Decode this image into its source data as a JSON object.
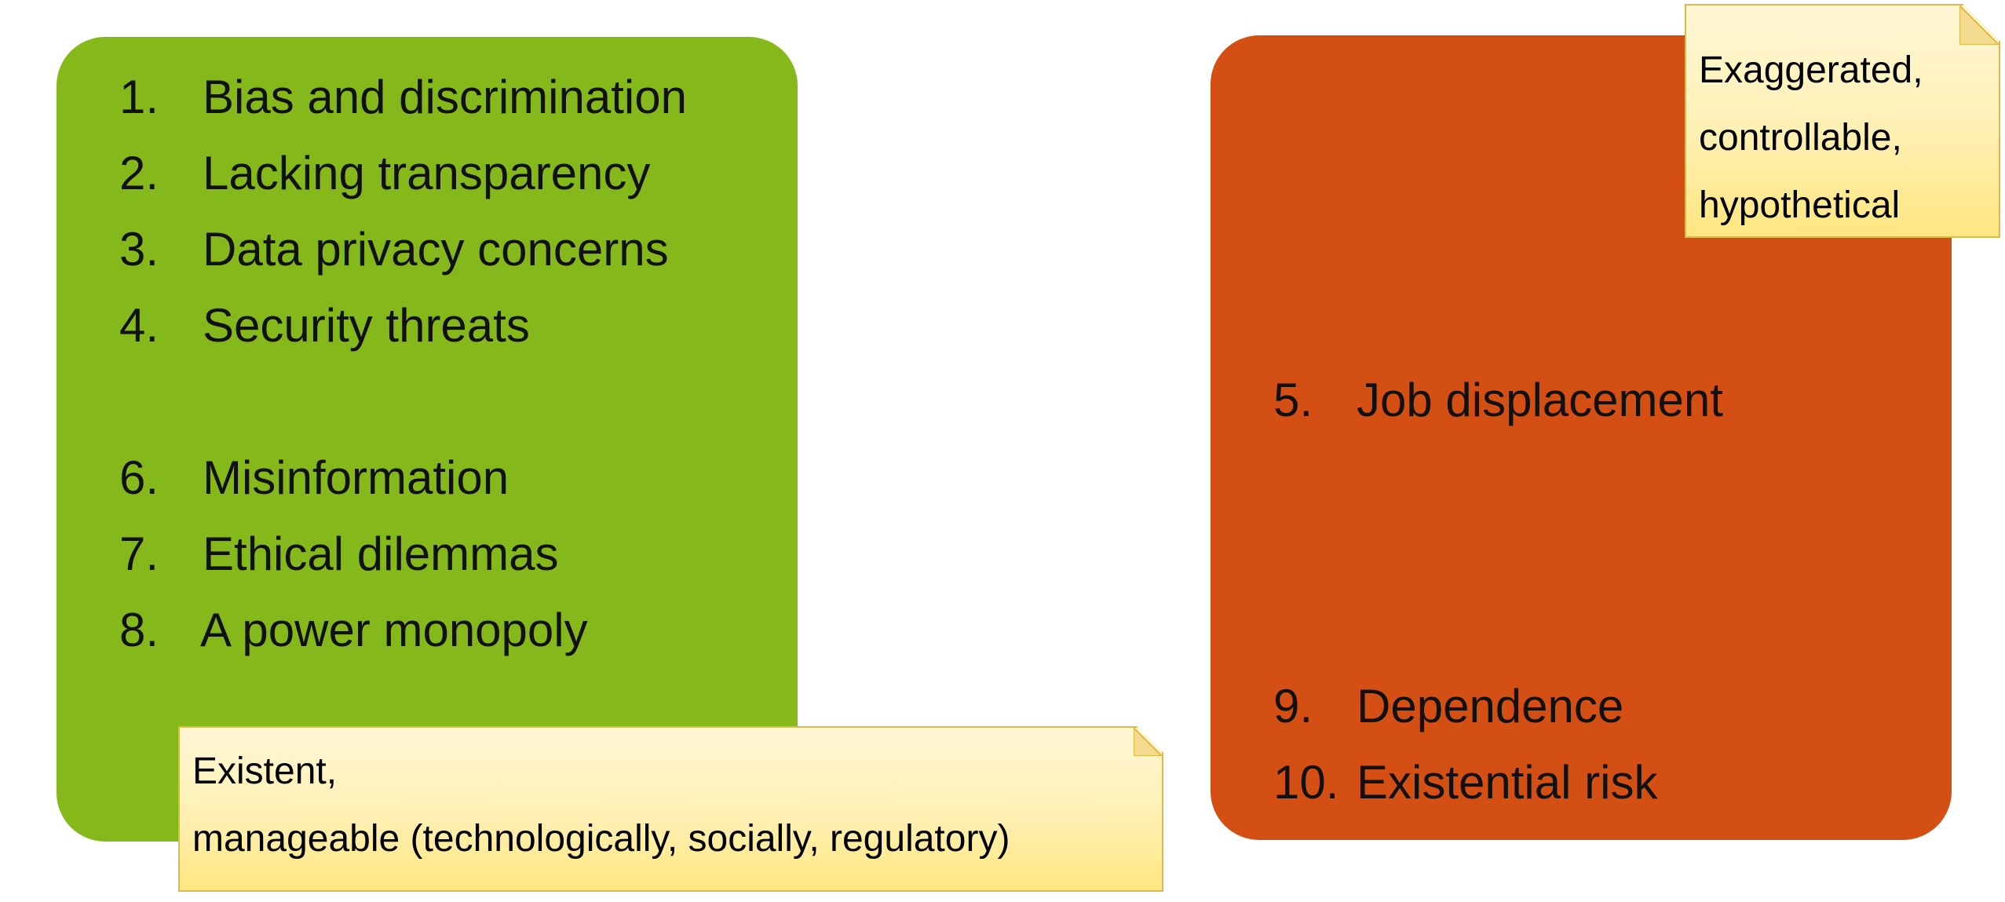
{
  "colors": {
    "manageable_box": "#85b81a",
    "hypothetical_box": "#d44f14",
    "note_fill": "#fff0b3",
    "note_border": "#e0b84a"
  },
  "left_group": {
    "items": [
      {
        "num": "1.",
        "text": "Bias and discrimination"
      },
      {
        "num": "2.",
        "text": "Lacking transparency"
      },
      {
        "num": "3.",
        "text": "Data privacy concerns"
      },
      {
        "num": "4.",
        "text": "Security threats"
      },
      {
        "num": "6.",
        "text": "Misinformation"
      },
      {
        "num": "7.",
        "text": "Ethical dilemmas"
      },
      {
        "num": "8.",
        "text": "A power monopoly"
      }
    ],
    "note": {
      "line1": "Existent,",
      "line2": "manageable (technologically, socially, regulatory)"
    }
  },
  "right_group": {
    "items": [
      {
        "num": "5.",
        "text": "Job displacement"
      },
      {
        "num": "9.",
        "text": "Dependence"
      },
      {
        "num": "10.",
        "text": "Existential risk"
      }
    ],
    "note": {
      "line1": "Exaggerated,",
      "line2": "controllable,",
      "line3": "hypothetical"
    }
  }
}
